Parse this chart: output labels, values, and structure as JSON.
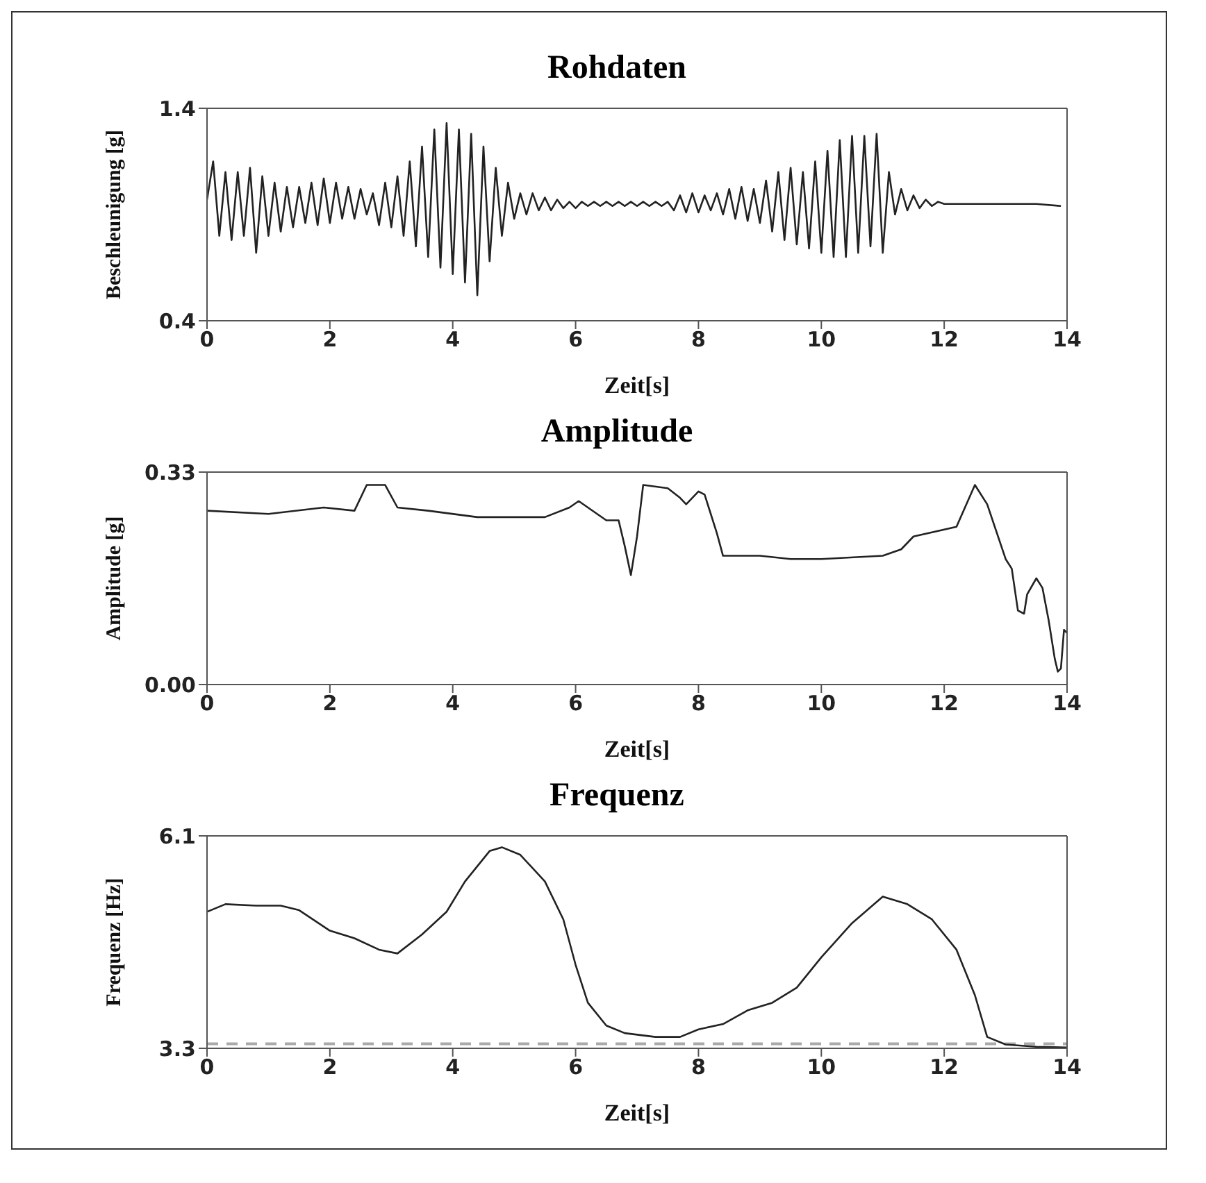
{
  "chart_data": [
    {
      "type": "line",
      "title": "Rohdaten",
      "xlabel": "Zeit[s]",
      "ylabel": "Beschleunigung [g]",
      "xlim": [
        0,
        14
      ],
      "ylim": [
        0.4,
        1.4
      ],
      "xticks": [
        0,
        2,
        4,
        6,
        8,
        10,
        12,
        14
      ],
      "yticks": [
        0.4,
        1.4
      ],
      "grid": false,
      "legend": false,
      "marker": "none",
      "line_style": "solid",
      "series": [
        {
          "color": "#222222",
          "x": [
            0,
            0.1,
            0.2,
            0.3,
            0.4,
            0.5,
            0.6,
            0.7,
            0.8,
            0.9,
            1.0,
            1.1,
            1.2,
            1.3,
            1.4,
            1.5,
            1.6,
            1.7,
            1.8,
            1.9,
            2.0,
            2.1,
            2.2,
            2.3,
            2.4,
            2.5,
            2.6,
            2.7,
            2.8,
            2.9,
            3.0,
            3.1,
            3.2,
            3.3,
            3.4,
            3.5,
            3.6,
            3.7,
            3.8,
            3.9,
            4.0,
            4.1,
            4.2,
            4.3,
            4.4,
            4.5,
            4.6,
            4.7,
            4.8,
            4.9,
            5.0,
            5.1,
            5.2,
            5.3,
            5.4,
            5.5,
            5.6,
            5.7,
            5.8,
            5.9,
            6.0,
            6.1,
            6.2,
            6.3,
            6.4,
            6.5,
            6.6,
            6.7,
            6.8,
            6.9,
            7.0,
            7.1,
            7.2,
            7.3,
            7.4,
            7.5,
            7.6,
            7.7,
            7.8,
            7.9,
            8.0,
            8.1,
            8.2,
            8.3,
            8.4,
            8.5,
            8.6,
            8.7,
            8.8,
            8.9,
            9.0,
            9.1,
            9.2,
            9.3,
            9.4,
            9.5,
            9.6,
            9.7,
            9.8,
            9.9,
            10.0,
            10.1,
            10.2,
            10.3,
            10.4,
            10.5,
            10.6,
            10.7,
            10.8,
            10.9,
            11.0,
            11.1,
            11.2,
            11.3,
            11.4,
            11.5,
            11.6,
            11.7,
            11.8,
            11.9,
            12.0,
            12.5,
            13.0,
            13.5,
            13.9
          ],
          "values": [
            0.97,
            1.15,
            0.8,
            1.1,
            0.78,
            1.1,
            0.8,
            1.12,
            0.72,
            1.08,
            0.8,
            1.05,
            0.82,
            1.03,
            0.84,
            1.03,
            0.86,
            1.05,
            0.85,
            1.07,
            0.86,
            1.05,
            0.88,
            1.03,
            0.88,
            1.02,
            0.9,
            1.0,
            0.85,
            1.05,
            0.84,
            1.08,
            0.8,
            1.15,
            0.75,
            1.22,
            0.7,
            1.3,
            0.65,
            1.33,
            0.62,
            1.3,
            0.58,
            1.28,
            0.52,
            1.22,
            0.68,
            1.12,
            0.8,
            1.05,
            0.88,
            1.0,
            0.9,
            1.0,
            0.92,
            0.98,
            0.92,
            0.97,
            0.93,
            0.96,
            0.93,
            0.96,
            0.94,
            0.96,
            0.94,
            0.96,
            0.94,
            0.96,
            0.94,
            0.96,
            0.94,
            0.96,
            0.94,
            0.96,
            0.94,
            0.96,
            0.92,
            0.99,
            0.91,
            1.0,
            0.91,
            0.99,
            0.92,
            1.0,
            0.9,
            1.02,
            0.88,
            1.03,
            0.87,
            1.02,
            0.86,
            1.06,
            0.82,
            1.1,
            0.78,
            1.12,
            0.76,
            1.1,
            0.74,
            1.15,
            0.72,
            1.2,
            0.7,
            1.25,
            0.7,
            1.27,
            0.72,
            1.27,
            0.75,
            1.28,
            0.72,
            1.1,
            0.9,
            1.02,
            0.92,
            0.99,
            0.93,
            0.97,
            0.94,
            0.96,
            0.95,
            0.95,
            0.95,
            0.95,
            0.94
          ]
        }
      ]
    },
    {
      "type": "line",
      "title": "Amplitude",
      "xlabel": "Zeit[s]",
      "ylabel": "Amplitude [g]",
      "xlim": [
        0,
        14
      ],
      "ylim": [
        0,
        0.33
      ],
      "xticks": [
        0,
        2,
        4,
        6,
        8,
        10,
        12,
        14
      ],
      "yticks": [
        {
          "value": 0,
          "label": "0.00"
        },
        0.33
      ],
      "grid": false,
      "legend": false,
      "marker": "none",
      "line_style": "solid",
      "series": [
        {
          "color": "#222222",
          "x": [
            0,
            1,
            1.9,
            2.4,
            2.6,
            2.9,
            3.1,
            3.6,
            4.4,
            5.5,
            5.9,
            6.05,
            6.5,
            6.7,
            6.8,
            6.9,
            7.0,
            7.1,
            7.5,
            7.7,
            7.8,
            8.0,
            8.1,
            8.3,
            8.4,
            9,
            9.5,
            10,
            11,
            11.3,
            11.5,
            12.2,
            12.5,
            12.7,
            13.0,
            13.1,
            13.2,
            13.3,
            13.35,
            13.5,
            13.6,
            13.7,
            13.8,
            13.85,
            13.9,
            13.95,
            14.0
          ],
          "values": [
            0.27,
            0.265,
            0.275,
            0.27,
            0.31,
            0.31,
            0.275,
            0.27,
            0.26,
            0.26,
            0.275,
            0.285,
            0.255,
            0.255,
            0.215,
            0.17,
            0.23,
            0.31,
            0.305,
            0.29,
            0.28,
            0.3,
            0.295,
            0.235,
            0.2,
            0.2,
            0.195,
            0.195,
            0.2,
            0.21,
            0.23,
            0.245,
            0.31,
            0.28,
            0.195,
            0.18,
            0.115,
            0.11,
            0.14,
            0.165,
            0.15,
            0.1,
            0.04,
            0.02,
            0.025,
            0.085,
            0.08
          ]
        }
      ]
    },
    {
      "type": "line",
      "title": "Frequenz",
      "xlabel": "Zeit[s]",
      "ylabel": "Frequenz [Hz]",
      "xlim": [
        0,
        14
      ],
      "ylim": [
        3.3,
        6.1
      ],
      "xticks": [
        0,
        2,
        4,
        6,
        8,
        10,
        12,
        14
      ],
      "yticks": [
        3.3,
        6.1
      ],
      "grid": false,
      "legend": false,
      "marker": "none",
      "line_style": "solid",
      "ref_lines": [
        {
          "axis": "y",
          "value": 3.36,
          "color": "#aaaaaa",
          "line_style": "dashed"
        }
      ],
      "series": [
        {
          "color": "#222222",
          "x": [
            0,
            0.3,
            0.8,
            1.2,
            1.5,
            2,
            2.4,
            2.8,
            3.1,
            3.5,
            3.9,
            4.2,
            4.6,
            4.8,
            5.1,
            5.5,
            5.8,
            6.0,
            6.2,
            6.5,
            6.8,
            7.3,
            7.7,
            8.0,
            8.4,
            8.8,
            9.2,
            9.6,
            10.0,
            10.5,
            11.0,
            11.4,
            11.8,
            12.2,
            12.5,
            12.7,
            13,
            13.5,
            14.0
          ],
          "values": [
            5.1,
            5.2,
            5.18,
            5.18,
            5.12,
            4.85,
            4.75,
            4.6,
            4.55,
            4.8,
            5.1,
            5.5,
            5.9,
            5.95,
            5.85,
            5.5,
            5.0,
            4.4,
            3.9,
            3.6,
            3.5,
            3.45,
            3.45,
            3.55,
            3.62,
            3.8,
            3.9,
            4.1,
            4.5,
            4.95,
            5.3,
            5.2,
            5.0,
            4.6,
            4.0,
            3.45,
            3.35,
            3.32,
            3.31
          ]
        }
      ]
    }
  ]
}
